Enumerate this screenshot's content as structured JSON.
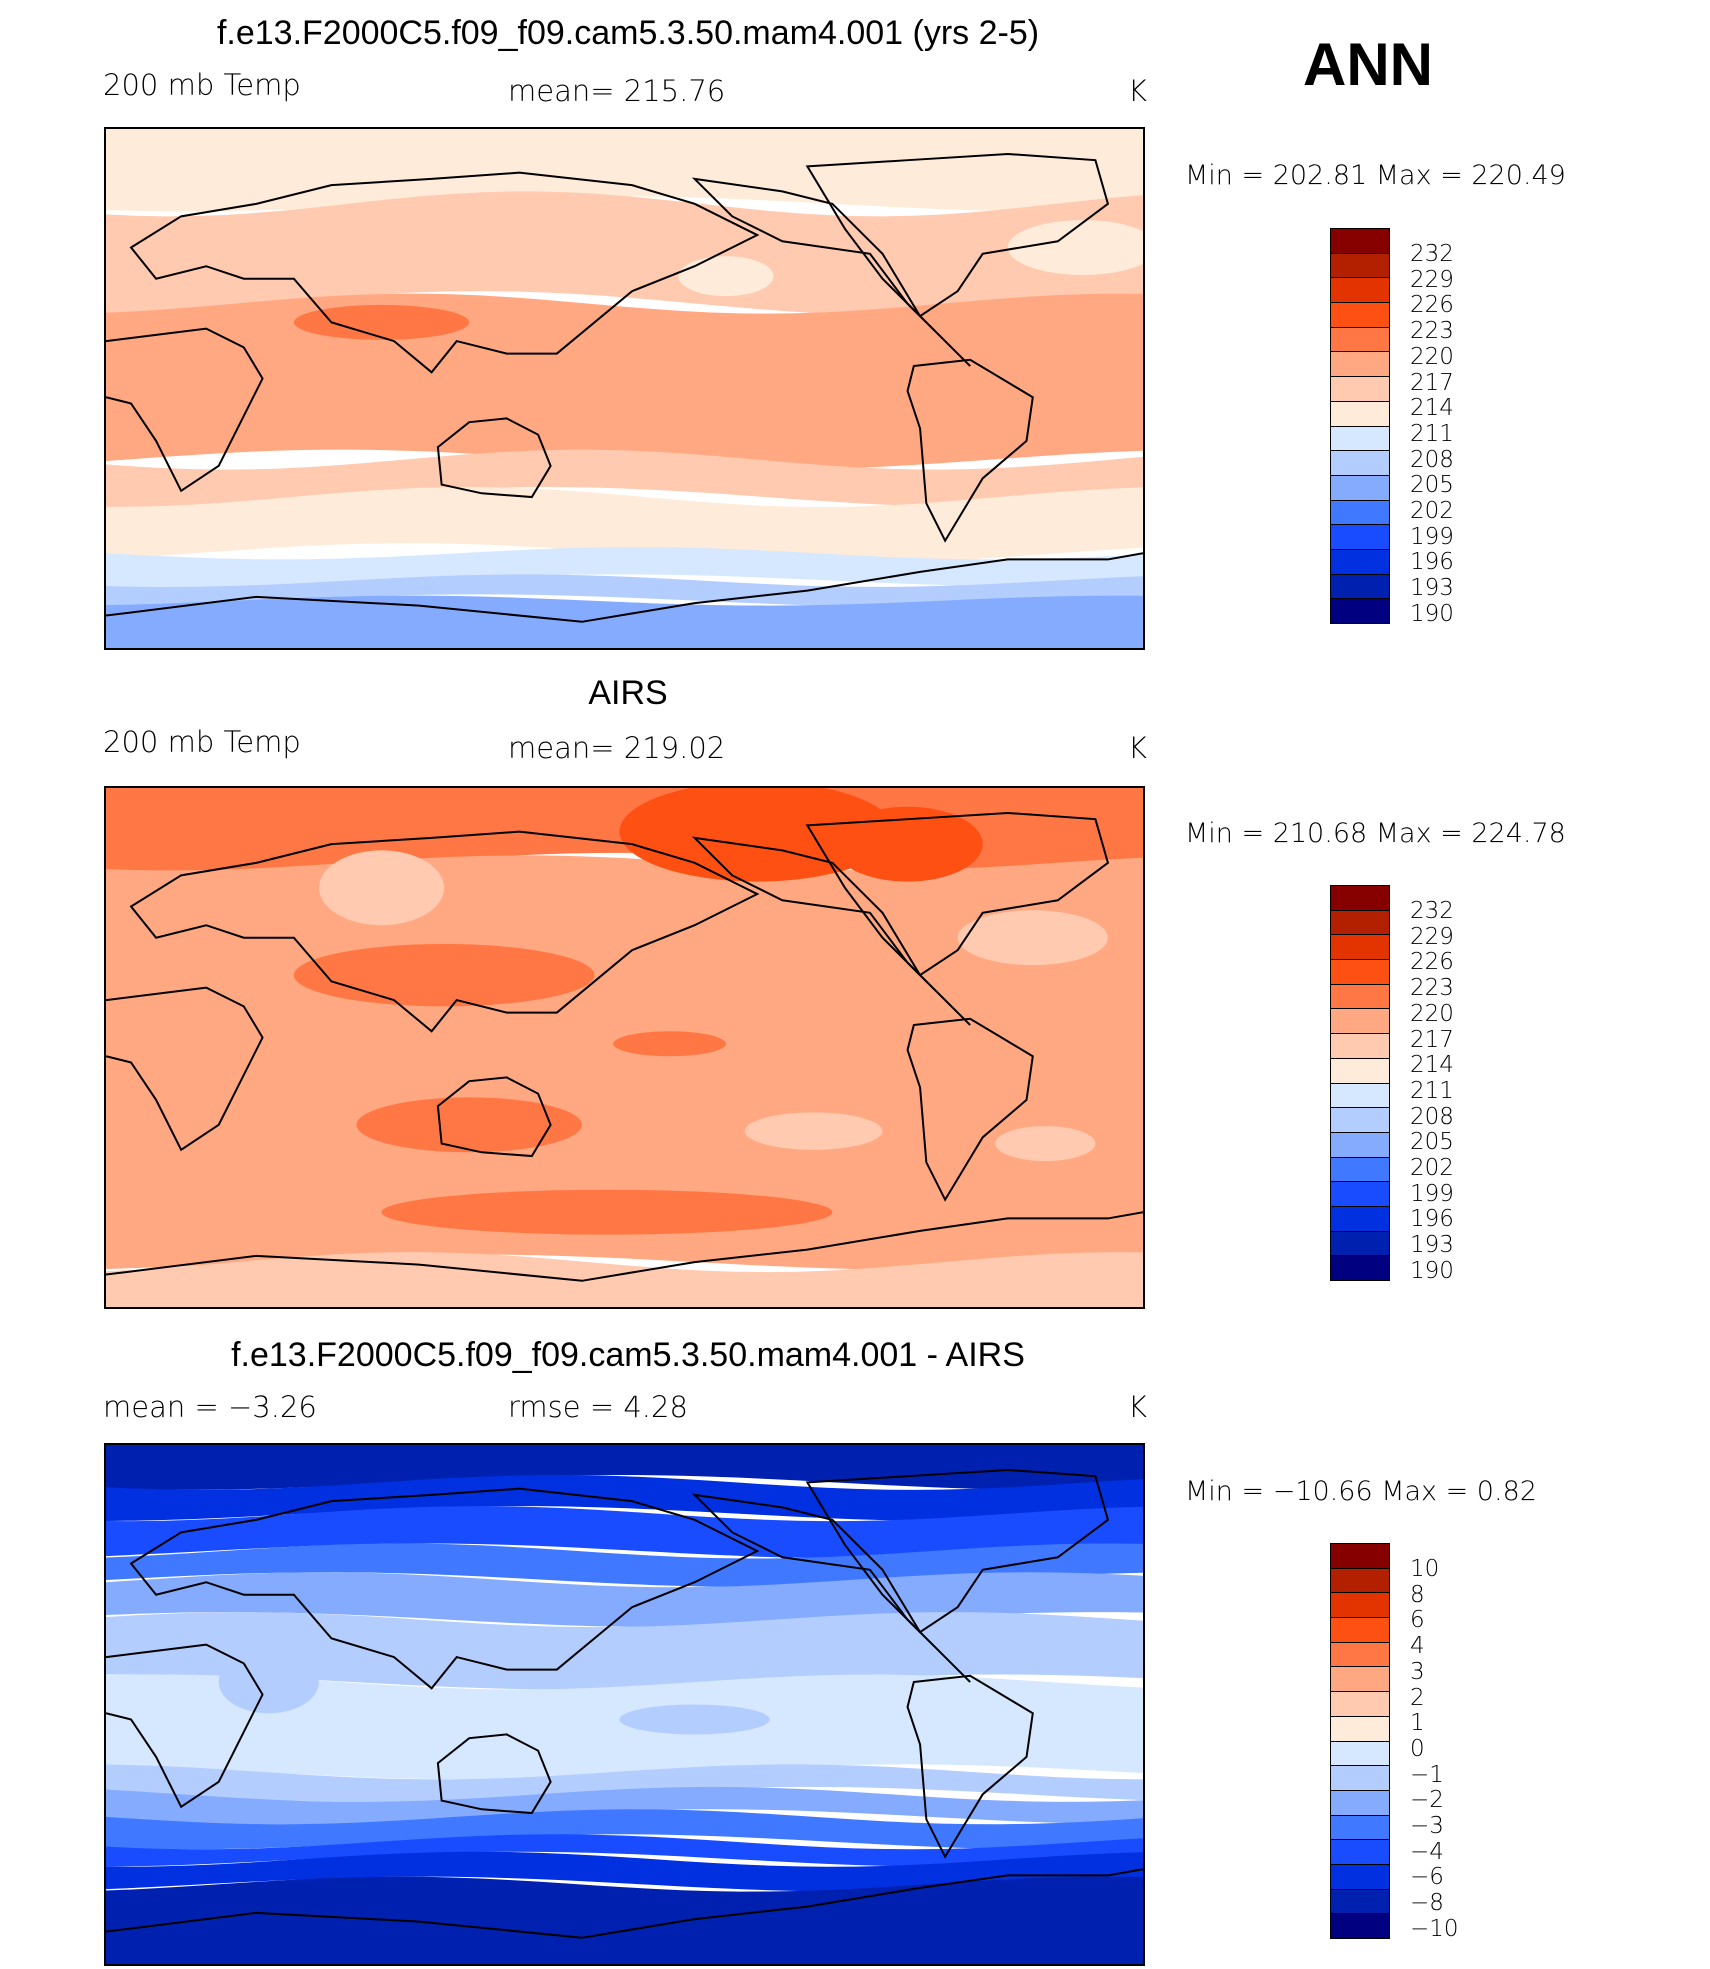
{
  "season": "ANN",
  "colors": [
    "#870000",
    "#B22000",
    "#E33400",
    "#FF5014",
    "#FF7744",
    "#FFA882",
    "#FFCAB0",
    "#FFEBD9",
    "#D6E8FF",
    "#B4CDFF",
    "#85ABFF",
    "#4079FF",
    "#1A4CFF",
    "#0030E0",
    "#0020B0",
    "#000080"
  ],
  "chart_data": [
    {
      "type": "heatmap",
      "title": "f.e13.F2000C5.f09_f09.cam5.3.50.mam4.001 (yrs 2-5)",
      "left_label": "200 mb Temp",
      "center_label": "mean=  215.76",
      "units": "K",
      "minmax": "Min  =  202.81  Max  =  220.49",
      "levels": [
        "232",
        "229",
        "226",
        "223",
        "220",
        "217",
        "214",
        "211",
        "208",
        "205",
        "202",
        "199",
        "196",
        "193",
        "190"
      ]
    },
    {
      "type": "heatmap",
      "title": "AIRS",
      "left_label": "200 mb Temp",
      "center_label": "mean=  219.02",
      "units": "K",
      "minmax": "Min  =  210.68  Max  =  224.78",
      "levels": [
        "232",
        "229",
        "226",
        "223",
        "220",
        "217",
        "214",
        "211",
        "208",
        "205",
        "202",
        "199",
        "196",
        "193",
        "190"
      ]
    },
    {
      "type": "heatmap",
      "title": "f.e13.F2000C5.f09_f09.cam5.3.50.mam4.001 - AIRS",
      "left_label": "mean  =     −3.26",
      "center_label": "rmse  =     4.28",
      "units": "K",
      "minmax": "Min  =  −10.66  Max  =      0.82",
      "levels": [
        "10",
        "8",
        "6",
        "4",
        "3",
        "2",
        "1",
        "0",
        "−1",
        "−2",
        "−3",
        "−4",
        "−6",
        "−8",
        "−10"
      ]
    }
  ]
}
